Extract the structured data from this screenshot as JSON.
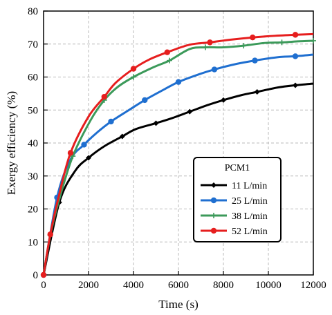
{
  "chart_data": {
    "type": "line",
    "xlabel": "Time (s)",
    "ylabel": "Exergy efficiency (%)",
    "xlim": [
      0,
      12000
    ],
    "ylim": [
      0,
      80
    ],
    "xticks": [
      "0",
      "2000",
      "4000",
      "6000",
      "8000",
      "10000",
      "12000"
    ],
    "yticks": [
      "0",
      "10",
      "20",
      "30",
      "40",
      "50",
      "60",
      "70",
      "80"
    ],
    "grid": true,
    "legend": {
      "title": "PCM1",
      "placement": "center-right"
    },
    "series": [
      {
        "name": "11 L/min",
        "color": "#000000",
        "marker": "diamond",
        "x": [
          0,
          700,
          1400,
          2000,
          2700,
          3500,
          4100,
          5000,
          5700,
          6500,
          7300,
          8000,
          8800,
          9500,
          10400,
          11200,
          12000
        ],
        "y": [
          0,
          22,
          31.5,
          35.5,
          39,
          42,
          44.2,
          46,
          47.5,
          49.5,
          51.5,
          53,
          54.5,
          55.5,
          56.8,
          57.5,
          58
        ]
      },
      {
        "name": "25 L/min",
        "color": "#1f6fd0",
        "marker": "circle",
        "x": [
          0,
          600,
          1200,
          1800,
          2400,
          3000,
          3800,
          4500,
          5300,
          6000,
          6900,
          7600,
          8600,
          9400,
          10400,
          11200,
          12000
        ],
        "y": [
          0,
          23.5,
          35,
          39.5,
          43.3,
          46.5,
          50,
          53,
          56,
          58.5,
          60.8,
          62.3,
          64,
          65,
          66,
          66.3,
          66.8
        ]
      },
      {
        "name": "38 L/min",
        "color": "#3c9a5a",
        "marker": "plus",
        "x": [
          0,
          300,
          700,
          1300,
          2100,
          2700,
          3300,
          4000,
          4900,
          5600,
          6500,
          7200,
          8000,
          8900,
          9800,
          10600,
          11300,
          12000
        ],
        "y": [
          0,
          12,
          23,
          36,
          47,
          53,
          57,
          60,
          63,
          65,
          68.5,
          69,
          69,
          69.5,
          70.3,
          70.5,
          70.8,
          71
        ]
      },
      {
        "name": "52 L/min",
        "color": "#e61e1e",
        "marker": "circle",
        "x": [
          0,
          300,
          700,
          1200,
          2000,
          2700,
          3200,
          4000,
          4700,
          5500,
          6500,
          7400,
          8300,
          9300,
          10300,
          11200,
          12000
        ],
        "y": [
          0,
          12.3,
          24.5,
          37,
          48,
          54,
          58.2,
          62.5,
          65.3,
          67.5,
          69.8,
          70.5,
          71.3,
          72,
          72.5,
          72.8,
          73
        ]
      }
    ]
  }
}
